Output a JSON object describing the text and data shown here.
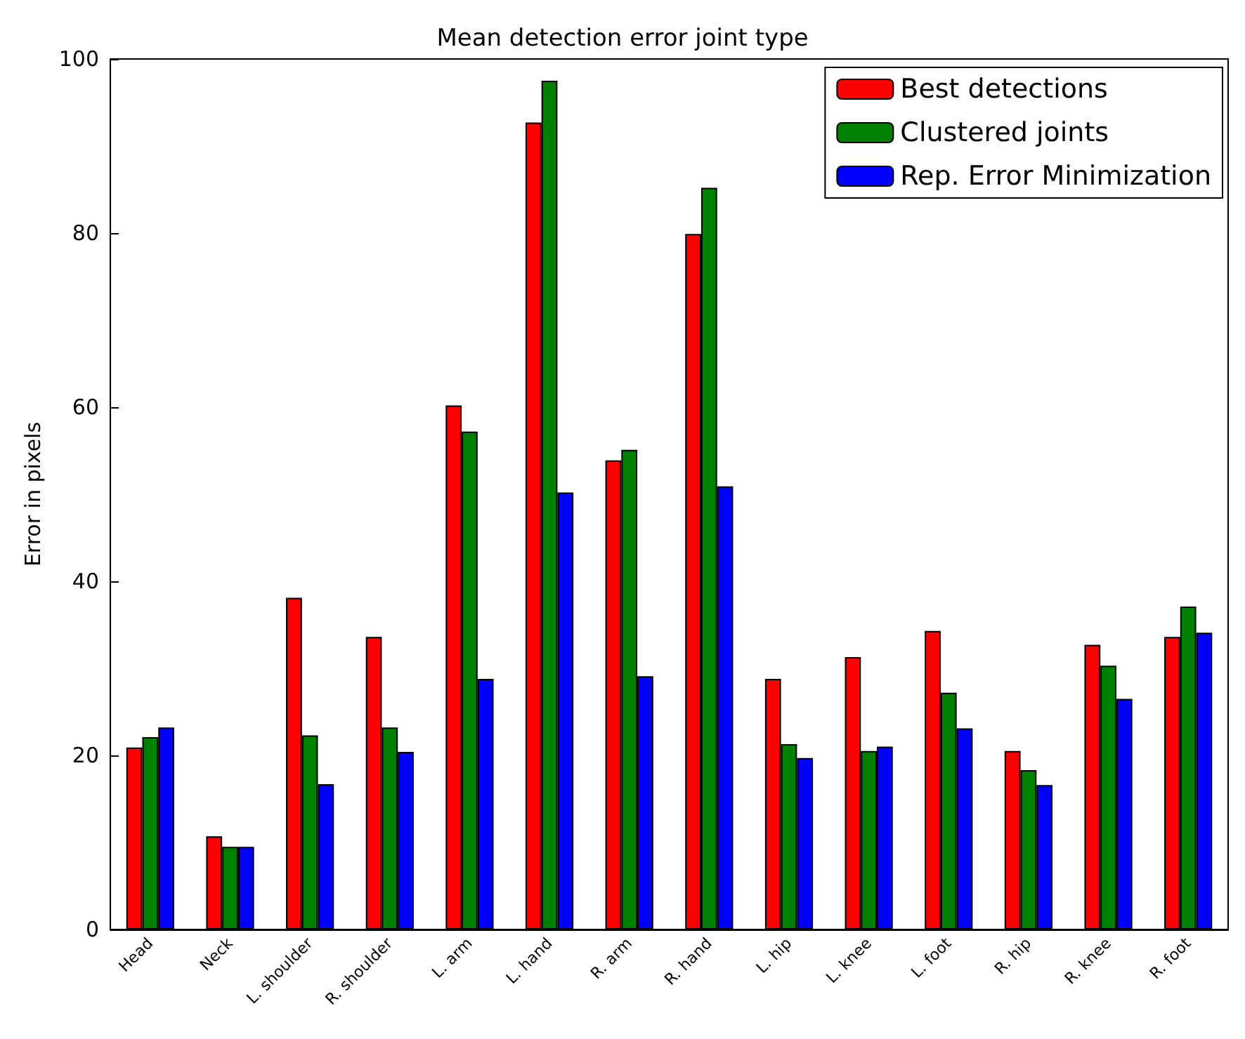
{
  "chart_data": {
    "type": "bar",
    "title": "Mean detection error joint type",
    "ylabel": "Error in pixels",
    "categories": [
      "Head",
      "Neck",
      "L. shoulder",
      "R. shoulder",
      "L. arm",
      "L. hand",
      "R. arm",
      "R. hand",
      "L. hip",
      "L. knee",
      "L. foot",
      "R. hip",
      "R. knee",
      "R. foot"
    ],
    "series": [
      {
        "name": "Best detections",
        "color": "#ff0000",
        "values": [
          20.9,
          10.7,
          38.1,
          33.6,
          60.2,
          92.7,
          53.9,
          79.9,
          28.8,
          31.3,
          34.3,
          20.5,
          32.7,
          33.6
        ]
      },
      {
        "name": "Clustered joints",
        "color": "#008000",
        "values": [
          22.1,
          9.5,
          22.3,
          23.2,
          57.2,
          97.5,
          55.1,
          85.2,
          21.3,
          20.5,
          27.2,
          18.3,
          30.3,
          37.1
        ]
      },
      {
        "name": "Rep. Error Minimization",
        "color": "#0000ff",
        "values": [
          23.2,
          9.5,
          16.7,
          20.4,
          28.8,
          50.2,
          29.1,
          50.9,
          19.7,
          21.0,
          23.1,
          16.6,
          26.5,
          34.1
        ]
      }
    ],
    "ylim": [
      0,
      100
    ],
    "yticks": [
      0,
      20,
      40,
      60,
      80,
      100
    ],
    "grid": false,
    "legend": "top right"
  }
}
